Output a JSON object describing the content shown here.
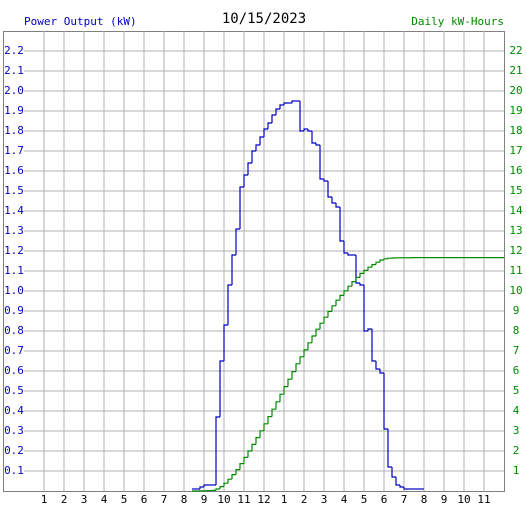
{
  "chart_data": {
    "type": "step-line",
    "title": "10/15/2023",
    "y_label": "Power Output (kW)",
    "y2_label": "Daily kW-Hours",
    "x": [
      8.4,
      8.6,
      8.8,
      9.0,
      9.2,
      9.4,
      9.6,
      9.8,
      10.0,
      10.2,
      10.4,
      10.6,
      10.8,
      11.0,
      11.2,
      11.4,
      11.6,
      11.8,
      12.0,
      12.2,
      12.4,
      12.6,
      12.8,
      13.0,
      13.2,
      13.4,
      13.6,
      13.8,
      14.0,
      14.2,
      14.4,
      14.6,
      14.8,
      15.0,
      15.2,
      15.4,
      15.6,
      15.8,
      16.0,
      16.2,
      16.4,
      16.6,
      16.8,
      17.0,
      17.2,
      17.4,
      17.6,
      17.8,
      18.0,
      18.2,
      18.4,
      18.6,
      18.8,
      19.0,
      19.2,
      19.4,
      19.6,
      19.8,
      20.0
    ],
    "series": [
      {
        "name": "Power Output (kW)",
        "color": "#0000c0",
        "axis": "y",
        "values": [
          0.01,
          0.01,
          0.02,
          0.03,
          0.03,
          0.03,
          0.37,
          0.65,
          0.83,
          1.03,
          1.18,
          1.31,
          1.52,
          1.58,
          1.64,
          1.7,
          1.73,
          1.77,
          1.81,
          1.84,
          1.88,
          1.91,
          1.93,
          1.94,
          1.94,
          1.95,
          1.95,
          1.8,
          1.81,
          1.8,
          1.74,
          1.73,
          1.56,
          1.55,
          1.47,
          1.44,
          1.42,
          1.25,
          1.19,
          1.18,
          1.18,
          1.04,
          1.03,
          0.8,
          0.81,
          0.65,
          0.61,
          0.59,
          0.31,
          0.12,
          0.07,
          0.03,
          0.02,
          0.01,
          0.01,
          0.01,
          0.01,
          0.01,
          null
        ]
      },
      {
        "name": "Daily kW-Hours",
        "color": "#008800",
        "axis": "y2",
        "values": [
          0.0,
          0.0,
          0.01,
          0.01,
          0.02,
          0.03,
          0.1,
          0.22,
          0.39,
          0.59,
          0.82,
          1.07,
          1.37,
          1.68,
          2.0,
          2.33,
          2.67,
          3.01,
          3.36,
          3.72,
          4.09,
          4.46,
          4.84,
          5.22,
          5.59,
          5.97,
          6.36,
          6.71,
          7.06,
          7.41,
          7.75,
          8.09,
          8.39,
          8.69,
          8.98,
          9.26,
          9.54,
          9.78,
          10.01,
          10.24,
          10.47,
          10.68,
          10.88,
          11.03,
          11.19,
          11.32,
          11.44,
          11.55,
          11.61,
          11.64,
          11.65,
          11.66,
          11.66,
          11.66,
          11.66,
          11.67,
          11.67,
          11.67,
          11.67
        ]
      }
    ],
    "xlim": [
      0,
      24
    ],
    "xticks": [
      1,
      2,
      3,
      4,
      5,
      6,
      7,
      8,
      9,
      10,
      11,
      12,
      {
        "value": 13,
        "label": "1"
      },
      {
        "value": 14,
        "label": "2"
      },
      {
        "value": 15,
        "label": "3"
      },
      {
        "value": 16,
        "label": "4"
      },
      {
        "value": 17,
        "label": "5"
      },
      {
        "value": 18,
        "label": "6"
      },
      {
        "value": 19,
        "label": "7"
      },
      {
        "value": 20,
        "label": "8"
      },
      {
        "value": 21,
        "label": "9"
      },
      {
        "value": 22,
        "label": "10"
      },
      {
        "value": 23,
        "label": "11"
      }
    ],
    "ylim": [
      0,
      2.3
    ],
    "yticks": [
      0.1,
      0.2,
      0.3,
      0.4,
      0.5,
      0.6,
      0.7,
      0.8,
      0.9,
      {
        "value": 1,
        "label": "1.0"
      },
      1.1,
      1.2,
      1.3,
      1.4,
      1.5,
      1.6,
      1.7,
      1.8,
      1.9,
      {
        "value": 2,
        "label": "2.0"
      },
      2.1,
      2.2
    ],
    "y2lim": [
      0,
      23
    ],
    "y2ticks": [
      1,
      2,
      3,
      4,
      5,
      6,
      7,
      8,
      9,
      10,
      11,
      12,
      13,
      14,
      15,
      16,
      17,
      18,
      19,
      20,
      21,
      22
    ],
    "grid": true
  }
}
